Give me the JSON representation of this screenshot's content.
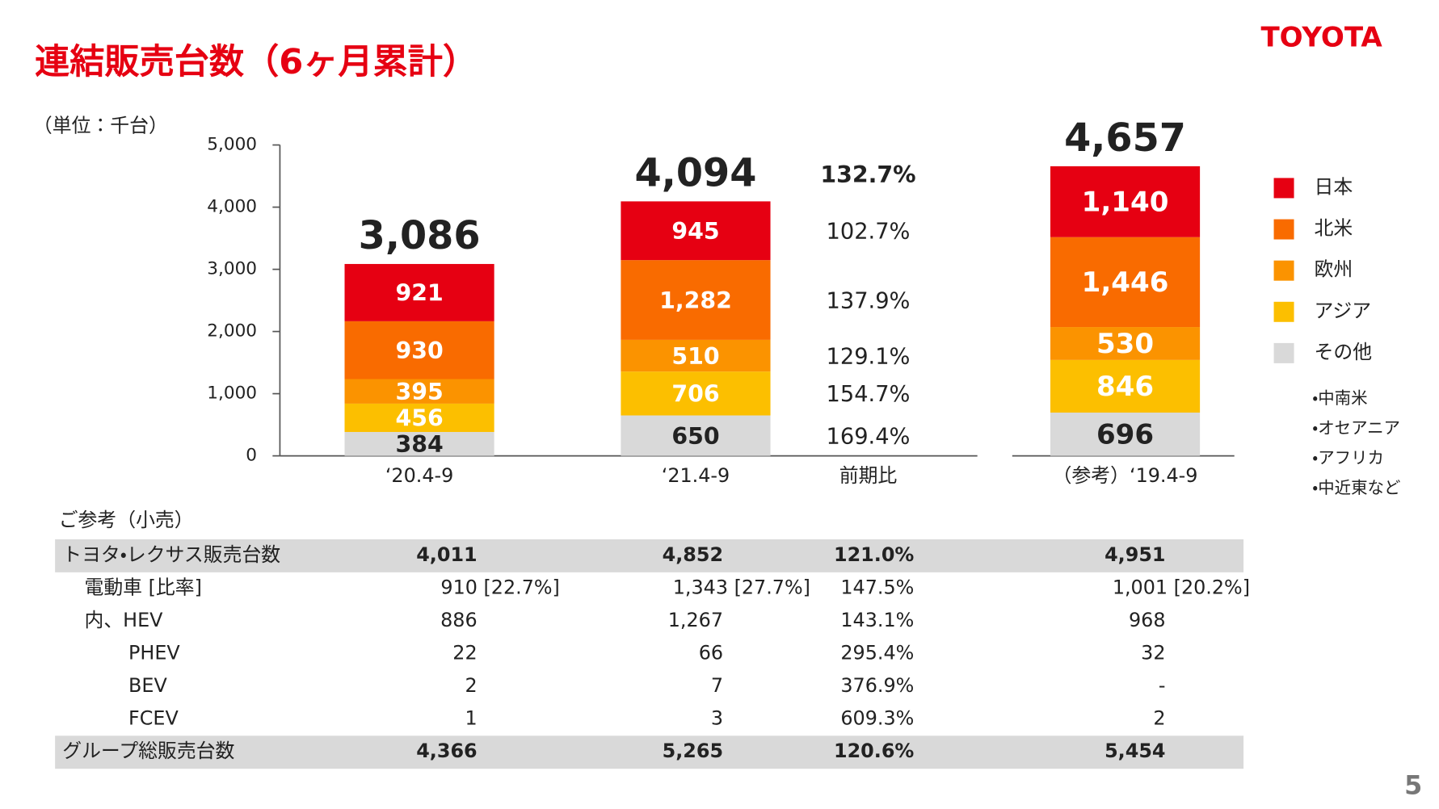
{
  "header": {
    "title": "連結販売台数（6ヶ月累計）",
    "logo": "TOYOTA",
    "unit": "（単位：千台）",
    "page": "5"
  },
  "chart_data": {
    "type": "bar",
    "stacked": true,
    "categories": [
      "‘20.4-9",
      "‘21.4-9",
      "（参考）‘19.4-9"
    ],
    "series": [
      {
        "name": "日本",
        "color": "#e60012",
        "values": [
          921,
          945,
          1140
        ],
        "value_labels": [
          "921",
          "945",
          "1,140"
        ]
      },
      {
        "name": "北米",
        "color": "#f96b00",
        "values": [
          930,
          1282,
          1446
        ],
        "value_labels": [
          "930",
          "1,282",
          "1,446"
        ]
      },
      {
        "name": "欧州",
        "color": "#fb9300",
        "values": [
          395,
          510,
          530
        ],
        "value_labels": [
          "395",
          "510",
          "530"
        ]
      },
      {
        "name": "アジア",
        "color": "#fcbf00",
        "values": [
          456,
          706,
          846
        ],
        "value_labels": [
          "456",
          "706",
          "846"
        ]
      },
      {
        "name": "その他",
        "color": "#d9d9d9",
        "values": [
          384,
          650,
          696
        ],
        "value_labels": [
          "384",
          "650",
          "696"
        ]
      }
    ],
    "totals": {
      "values": [
        3086,
        4094,
        4657
      ],
      "value_labels": [
        "3,086",
        "4,094",
        "4,657"
      ]
    },
    "yoy": {
      "label": "前期比",
      "total": "132.7%",
      "values": [
        "102.7%",
        "137.9%",
        "129.1%",
        "154.7%",
        "169.4%"
      ]
    },
    "legend_notes": [
      "・中南米",
      "・オセアニア",
      "・アフリカ",
      "・中近東など"
    ],
    "ylim": [
      0,
      5000
    ],
    "yticks": [
      0,
      {
        "value": 1000,
        "label": "1,000"
      },
      {
        "value": 2000,
        "label": "2,000"
      },
      {
        "value": 3000,
        "label": "3,000"
      },
      {
        "value": 4000,
        "label": "4,000"
      },
      {
        "value": 5000,
        "label": "5,000"
      }
    ]
  },
  "table": {
    "title": "ご参考（小売）",
    "rows": [
      [
        "トヨタ・レクサス販売台数",
        "4,011",
        "4,852",
        "121.0%",
        "4,951"
      ],
      [
        "電動車 [比率]",
        "910 [22.7%]",
        "1,343 [27.7%]",
        "147.5%",
        "1,001 [20.2%]"
      ],
      [
        "内、HEV",
        "886",
        "1,267",
        "143.1%",
        "968"
      ],
      [
        "PHEV",
        "22",
        "66",
        "295.4%",
        "32"
      ],
      [
        "BEV",
        "2",
        "7",
        "376.9%",
        "-"
      ],
      [
        "FCEV",
        "1",
        "3",
        "609.3%",
        "2"
      ],
      [
        "グループ総販売台数",
        "4,366",
        "5,265",
        "120.6%",
        "5,454"
      ]
    ]
  }
}
